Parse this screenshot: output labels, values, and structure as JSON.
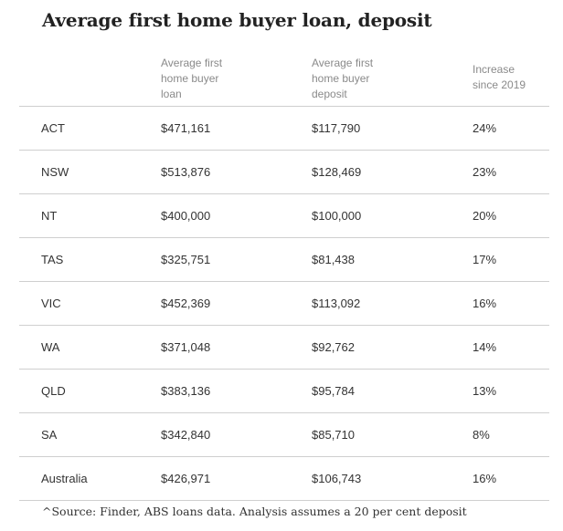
{
  "title": "Average first home buyer loan, deposit",
  "source": "^Source: Finder, ABS loans data. Analysis assumes a 20 per cent deposit",
  "chart_data": {
    "type": "table",
    "title": "Average first home buyer loan, deposit",
    "columns": [
      "",
      "Average first home buyer loan",
      "Average first home buyer deposit",
      "Increase since 2019"
    ],
    "header_lines": [
      [],
      [
        "Average first",
        "home buyer",
        "loan"
      ],
      [
        "Average first",
        "home buyer",
        "deposit"
      ],
      [
        "Increase",
        "since 2019"
      ]
    ],
    "rows": [
      [
        "ACT",
        "$471,161",
        "$117,790",
        "24%"
      ],
      [
        "NSW",
        "$513,876",
        "$128,469",
        "23%"
      ],
      [
        "NT",
        "$400,000",
        "$100,000",
        "20%"
      ],
      [
        "TAS",
        "$325,751",
        "$81,438",
        "17%"
      ],
      [
        "VIC",
        "$452,369",
        "$113,092",
        "16%"
      ],
      [
        "WA",
        "$371,048",
        "$92,762",
        "14%"
      ],
      [
        "QLD",
        "$383,136",
        "$95,784",
        "13%"
      ],
      [
        "SA",
        "$342,840",
        "$85,710",
        "8%"
      ],
      [
        "Australia",
        "$426,971",
        "$106,743",
        "16%"
      ]
    ]
  }
}
